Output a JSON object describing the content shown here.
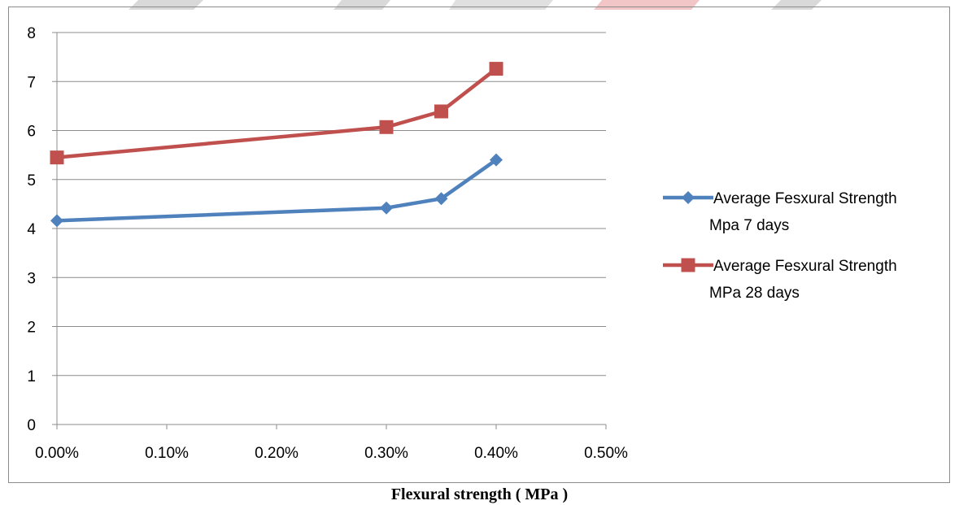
{
  "caption": "Flexural strength ( MPa )",
  "chart_data": {
    "type": "line",
    "title": "",
    "xlabel": "",
    "ylabel": "",
    "x_tick_labels": [
      "0.00%",
      "0.10%",
      "0.20%",
      "0.30%",
      "0.40%",
      "0.50%"
    ],
    "x_ticks": [
      0,
      0.1,
      0.2,
      0.3,
      0.4,
      0.5
    ],
    "xlim": [
      0,
      0.5
    ],
    "y_ticks": [
      0,
      1,
      2,
      3,
      4,
      5,
      6,
      7,
      8
    ],
    "ylim": [
      0,
      8
    ],
    "grid": "horizontal",
    "legend_position": "right",
    "x": [
      0,
      0.3,
      0.35,
      0.4
    ],
    "series": [
      {
        "name": "Average Fesxural Strength Mpa 7 days",
        "legend_lines": [
          "Average Fesxural Strength",
          "Mpa 7 days"
        ],
        "values": [
          4.16,
          4.42,
          4.61,
          5.4
        ],
        "color": "#4f81bd",
        "marker": "diamond"
      },
      {
        "name": "Average Fesxural Strength MPa 28 days",
        "legend_lines": [
          "Average Fesxural Strength",
          "MPa 28 days"
        ],
        "values": [
          5.45,
          6.07,
          6.39,
          7.26
        ],
        "color": "#c0504d",
        "marker": "square"
      }
    ]
  }
}
